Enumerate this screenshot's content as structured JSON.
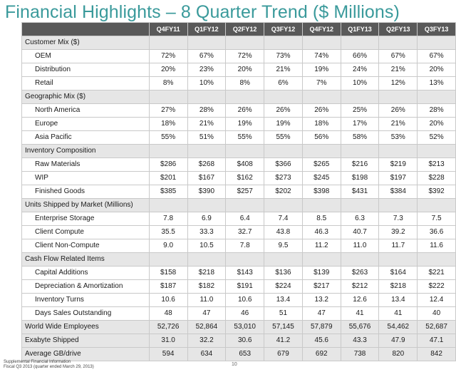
{
  "title": "Financial Highlights – 8 Quarter Trend ($ Millions)",
  "columns": [
    "Q4FY11",
    "Q1FY12",
    "Q2FY12",
    "Q3FY12",
    "Q4FY12",
    "Q1FY13",
    "Q2FY13",
    "Q3FY13"
  ],
  "rows": [
    {
      "type": "band",
      "label": "Customer Mix ($)",
      "values": [
        "",
        "",
        "",
        "",
        "",
        "",
        "",
        ""
      ]
    },
    {
      "type": "sub",
      "label": "OEM",
      "values": [
        "72%",
        "67%",
        "72%",
        "73%",
        "74%",
        "66%",
        "67%",
        "67%"
      ]
    },
    {
      "type": "sub",
      "label": "Distribution",
      "values": [
        "20%",
        "23%",
        "20%",
        "21%",
        "19%",
        "24%",
        "21%",
        "20%"
      ]
    },
    {
      "type": "sub",
      "label": "Retail",
      "values": [
        "8%",
        "10%",
        "8%",
        "6%",
        "7%",
        "10%",
        "12%",
        "13%"
      ]
    },
    {
      "type": "band",
      "label": "Geographic Mix ($)",
      "values": [
        "",
        "",
        "",
        "",
        "",
        "",
        "",
        ""
      ]
    },
    {
      "type": "sub",
      "label": "North America",
      "values": [
        "27%",
        "28%",
        "26%",
        "26%",
        "26%",
        "25%",
        "26%",
        "28%"
      ]
    },
    {
      "type": "sub",
      "label": "Europe",
      "values": [
        "18%",
        "21%",
        "19%",
        "19%",
        "18%",
        "17%",
        "21%",
        "20%"
      ]
    },
    {
      "type": "sub",
      "label": "Asia Pacific",
      "values": [
        "55%",
        "51%",
        "55%",
        "55%",
        "56%",
        "58%",
        "53%",
        "52%"
      ]
    },
    {
      "type": "band",
      "label": "Inventory Composition",
      "values": [
        "",
        "",
        "",
        "",
        "",
        "",
        "",
        ""
      ]
    },
    {
      "type": "sub",
      "label": "Raw Materials",
      "values": [
        "$286",
        "$268",
        "$408",
        "$366",
        "$265",
        "$216",
        "$219",
        "$213"
      ]
    },
    {
      "type": "sub",
      "label": "WIP",
      "values": [
        "$201",
        "$167",
        "$162",
        "$273",
        "$245",
        "$198",
        "$197",
        "$228"
      ]
    },
    {
      "type": "sub",
      "label": "Finished Goods",
      "values": [
        "$385",
        "$390",
        "$257",
        "$202",
        "$398",
        "$431",
        "$384",
        "$392"
      ]
    },
    {
      "type": "band",
      "label": "Units Shipped by Market (Millions)",
      "values": [
        "",
        "",
        "",
        "",
        "",
        "",
        "",
        ""
      ]
    },
    {
      "type": "sub",
      "label": "Enterprise Storage",
      "values": [
        "7.8",
        "6.9",
        "6.4",
        "7.4",
        "8.5",
        "6.3",
        "7.3",
        "7.5"
      ]
    },
    {
      "type": "sub",
      "label": "Client Compute",
      "values": [
        "35.5",
        "33.3",
        "32.7",
        "43.8",
        "46.3",
        "40.7",
        "39.2",
        "36.6"
      ]
    },
    {
      "type": "sub",
      "label": "Client Non-Compute",
      "values": [
        "9.0",
        "10.5",
        "7.8",
        "9.5",
        "11.2",
        "11.0",
        "11.7",
        "11.6"
      ]
    },
    {
      "type": "band",
      "label": "Cash Flow Related Items",
      "values": [
        "",
        "",
        "",
        "",
        "",
        "",
        "",
        ""
      ]
    },
    {
      "type": "sub",
      "label": "Capital Additions",
      "values": [
        "$158",
        "$218",
        "$143",
        "$136",
        "$139",
        "$263",
        "$164",
        "$221"
      ]
    },
    {
      "type": "sub",
      "label": "Depreciation & Amortization",
      "values": [
        "$187",
        "$182",
        "$191",
        "$224",
        "$217",
        "$212",
        "$218",
        "$222"
      ]
    },
    {
      "type": "sub",
      "label": "Inventory Turns",
      "values": [
        "10.6",
        "11.0",
        "10.6",
        "13.4",
        "13.2",
        "12.6",
        "13.4",
        "12.4"
      ]
    },
    {
      "type": "sub",
      "label": "Days Sales Outstanding",
      "values": [
        "48",
        "47",
        "46",
        "51",
        "47",
        "41",
        "41",
        "40"
      ]
    },
    {
      "type": "band",
      "label": "World Wide Employees",
      "values": [
        "52,726",
        "52,864",
        "53,010",
        "57,145",
        "57,879",
        "55,676",
        "54,462",
        "52,687"
      ]
    },
    {
      "type": "band",
      "label": "Exabyte Shipped",
      "values": [
        "31.0",
        "32.2",
        "30.6",
        "41.2",
        "45.6",
        "43.3",
        "47.9",
        "47.1"
      ]
    },
    {
      "type": "band",
      "label": "Average GB/drive",
      "values": [
        "594",
        "634",
        "653",
        "679",
        "692",
        "738",
        "820",
        "842"
      ]
    }
  ],
  "footer": {
    "line1": "Supplemental Financial Information",
    "line2": "Fiscal Q3 2013 (quarter ended March 29, 2013)",
    "page": "10"
  }
}
